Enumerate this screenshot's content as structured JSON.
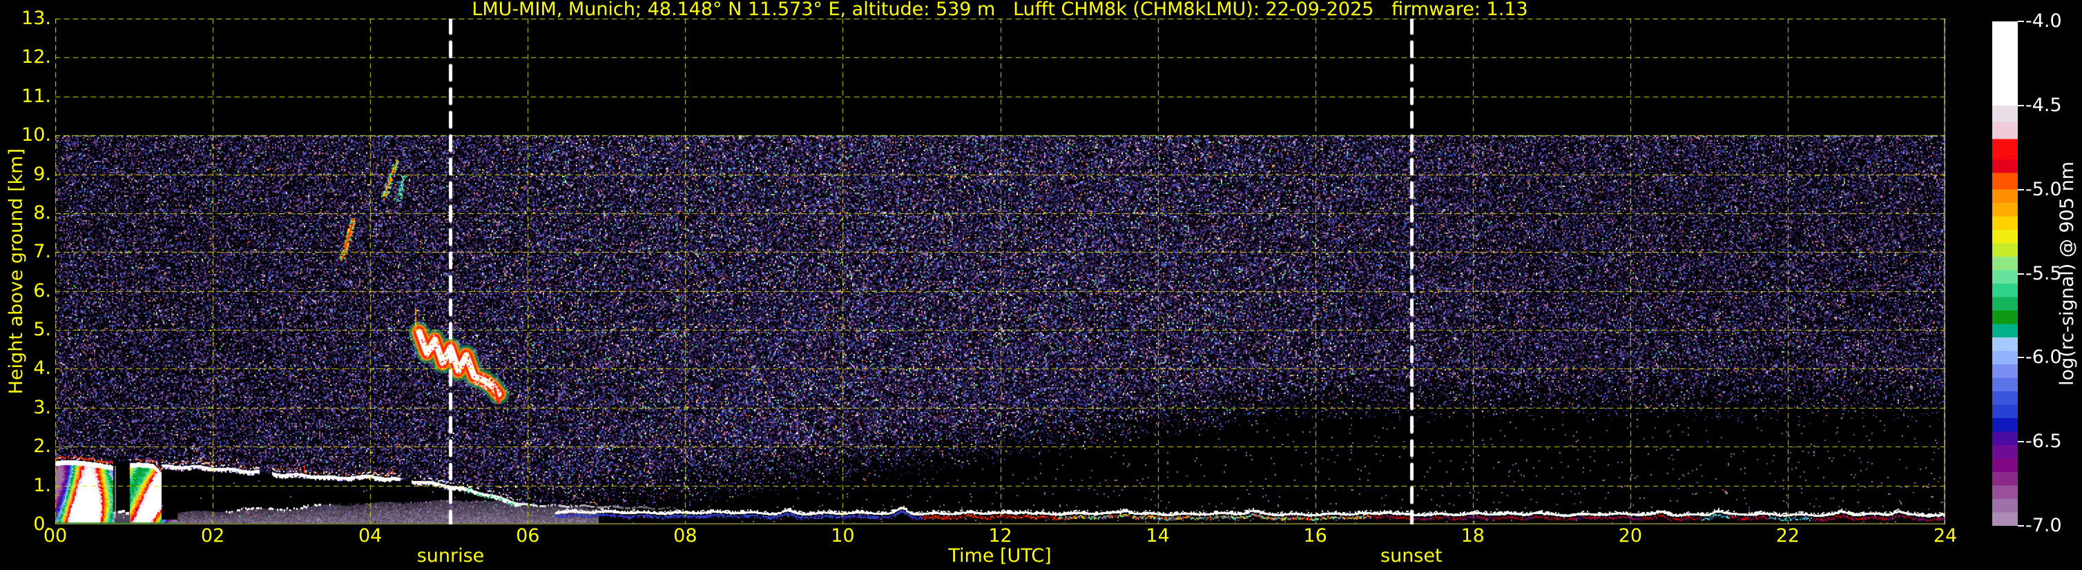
{
  "chart_data": {
    "type": "heatmap",
    "title": "LMU-MIM, Munich; 48.148° N 11.573° E, altitude: 539 m   Lufft CHM8k (CHM8kLMU): 22-09-2025   firmware: 1.13",
    "xlabel": "Time [UTC]",
    "ylabel": "Height above ground [km]",
    "xlim_hours": [
      0,
      24
    ],
    "ylim_km": [
      0,
      13
    ],
    "x_ticks": [
      {
        "hour": 0,
        "label": "00"
      },
      {
        "hour": 2,
        "label": "02"
      },
      {
        "hour": 4,
        "label": "04"
      },
      {
        "hour": 6,
        "label": "06"
      },
      {
        "hour": 8,
        "label": "08"
      },
      {
        "hour": 10,
        "label": "10"
      },
      {
        "hour": 12,
        "label": "12"
      },
      {
        "hour": 14,
        "label": "14"
      },
      {
        "hour": 16,
        "label": "16"
      },
      {
        "hour": 18,
        "label": "18"
      },
      {
        "hour": 20,
        "label": "20"
      },
      {
        "hour": 22,
        "label": "22"
      },
      {
        "hour": 24,
        "label": "24"
      }
    ],
    "y_ticks": [
      {
        "km": 0,
        "label": "0."
      },
      {
        "km": 1,
        "label": "1."
      },
      {
        "km": 2,
        "label": "2."
      },
      {
        "km": 3,
        "label": "3."
      },
      {
        "km": 4,
        "label": "4."
      },
      {
        "km": 5,
        "label": "5."
      },
      {
        "km": 6,
        "label": "6."
      },
      {
        "km": 7,
        "label": "7."
      },
      {
        "km": 8,
        "label": "8."
      },
      {
        "km": 9,
        "label": "9."
      },
      {
        "km": 10,
        "label": "10."
      },
      {
        "km": 11,
        "label": "11."
      },
      {
        "km": 12,
        "label": "12."
      },
      {
        "km": 13,
        "label": "13."
      }
    ],
    "grid": {
      "color": "#e3e300",
      "style": "dashed",
      "x_step_hours": 2,
      "y_step_km": 1
    },
    "data_region": {
      "top_km": 10,
      "note": "measurement range ends at 10 km; black above"
    },
    "events": [
      {
        "name": "sunrise",
        "label": "sunrise",
        "hour": 5.02,
        "line": "white-dashed-vertical"
      },
      {
        "name": "sunset",
        "label": "sunset",
        "hour": 17.22,
        "line": "white-dashed-vertical"
      }
    ],
    "colorbar": {
      "label": "log(rc-signal) @ 905 nm",
      "tick_labels": [
        "-4.0",
        "-4.5",
        "-5.0",
        "-5.5",
        "-6.0",
        "-6.5",
        "-7.0"
      ],
      "vmax": -4.0,
      "vmin": -7.0,
      "stops": [
        {
          "v": -4.0,
          "c": "#ffffff"
        },
        {
          "v": -4.5,
          "c": "#e9dde8"
        },
        {
          "v": -4.6,
          "c": "#f0cbd8"
        },
        {
          "v": -4.7,
          "c": "#fa0c0c"
        },
        {
          "v": -4.82,
          "c": "#e4001a"
        },
        {
          "v": -4.9,
          "c": "#ff5400"
        },
        {
          "v": -5.0,
          "c": "#ff9000"
        },
        {
          "v": -5.08,
          "c": "#ffaa00"
        },
        {
          "v": -5.16,
          "c": "#ffd200"
        },
        {
          "v": -5.24,
          "c": "#f2ee12"
        },
        {
          "v": -5.32,
          "c": "#c6ec2a"
        },
        {
          "v": -5.4,
          "c": "#8fe882"
        },
        {
          "v": -5.48,
          "c": "#66e49e"
        },
        {
          "v": -5.56,
          "c": "#2ed489"
        },
        {
          "v": -5.64,
          "c": "#14b45e"
        },
        {
          "v": -5.72,
          "c": "#0f9a14"
        },
        {
          "v": -5.8,
          "c": "#00b088"
        },
        {
          "v": -5.88,
          "c": "#a6ccff"
        },
        {
          "v": -5.96,
          "c": "#92b2fb"
        },
        {
          "v": -6.04,
          "c": "#7b8cf2"
        },
        {
          "v": -6.12,
          "c": "#5c74e9"
        },
        {
          "v": -6.2,
          "c": "#3b55dc"
        },
        {
          "v": -6.28,
          "c": "#2742d2"
        },
        {
          "v": -6.36,
          "c": "#0f17be"
        },
        {
          "v": -6.44,
          "c": "#4a0ba0"
        },
        {
          "v": -6.52,
          "c": "#6e0a94"
        },
        {
          "v": -6.6,
          "c": "#800884"
        },
        {
          "v": -6.68,
          "c": "#8c2a8a"
        },
        {
          "v": -6.76,
          "c": "#9a4f9a"
        },
        {
          "v": -6.84,
          "c": "#a070a8"
        },
        {
          "v": -6.92,
          "c": "#ab8cb4"
        },
        {
          "v": -7.0,
          "c": "#b7a6c2"
        }
      ]
    },
    "features": [
      {
        "id": "noise",
        "kind": "background_noise",
        "time_h": [
          0,
          24
        ],
        "height_km": [
          0,
          10
        ],
        "desc": "violet/blue solar-background speckle noise filling the 0-10 km range, black gap growing below ~2.6 km during afternoon/evening",
        "palette_dark": [
          "#271847",
          "#33205c",
          "#1c1340",
          "#3d2766",
          "#150f33",
          "#2c1c4e"
        ],
        "palette_mid": [
          "#5a3a86",
          "#6d4b96",
          "#4a4fae",
          "#46246e"
        ],
        "palette_blue": [
          "#3b55dc",
          "#2742d2",
          "#5577e8"
        ],
        "palette_mauve": [
          "#8a5a9a",
          "#a478b0"
        ],
        "palette_bright": [
          "#9fd2ff",
          "#57e87b",
          "#ff6a3c",
          "#ffd24a",
          "#ffffff",
          "#62e0d0",
          "#ff9efc"
        ],
        "top_edge_colors": [
          "#bfe8ff",
          "#ffffff",
          "#7fe8c0",
          "#d0b0ff"
        ]
      },
      {
        "id": "precip",
        "kind": "precipitation_shower",
        "time_h": [
          0.0,
          1.55
        ],
        "height_km": [
          0,
          1.75
        ],
        "cells": [
          [
            0.0,
            0.74
          ],
          [
            0.95,
            1.55
          ]
        ],
        "gap_h": [
          0.74,
          0.95
        ],
        "cloud_top_km": 1.6,
        "capA": [
          [
            0,
            1.62
          ],
          [
            0.3,
            1.58
          ],
          [
            0.55,
            1.6
          ],
          [
            0.74,
            1.55
          ]
        ],
        "capB": [
          [
            0.95,
            1.56
          ],
          [
            1.25,
            1.5
          ],
          [
            1.35,
            1.28
          ],
          [
            1.45,
            0.8
          ],
          [
            1.55,
            0.33
          ]
        ],
        "desc": "intense rainbow-striped rain/cloud signal below white cloud cap with red fringe"
      },
      {
        "id": "stratus",
        "kind": "cloud_top_line",
        "time_h": [
          1.35,
          5.9
        ],
        "path": [
          [
            1.35,
            1.52
          ],
          [
            1.8,
            1.5
          ],
          [
            2.3,
            1.42
          ],
          [
            2.6,
            1.38
          ],
          [
            2.8,
            1.32
          ],
          [
            3.2,
            1.28
          ],
          [
            3.6,
            1.22
          ],
          [
            4.0,
            1.26
          ],
          [
            4.35,
            1.18
          ],
          [
            4.6,
            1.12
          ],
          [
            4.9,
            1.05
          ],
          [
            5.15,
            0.95
          ],
          [
            5.5,
            0.78
          ],
          [
            5.9,
            0.55
          ]
        ],
        "gaps": [
          [
            2.58,
            2.74
          ],
          [
            4.38,
            4.52
          ]
        ],
        "desc": "white stratus cloud top ~1-1.5 km, fully attenuated (black) zone below"
      },
      {
        "id": "haze",
        "kind": "surface_haze",
        "time_h": [
          1.55,
          6.9
        ],
        "top_path": [
          [
            1.55,
            0.3
          ],
          [
            2.0,
            0.34
          ],
          [
            2.5,
            0.38
          ],
          [
            3.0,
            0.42
          ],
          [
            3.5,
            0.5
          ],
          [
            4.2,
            0.55
          ],
          [
            5.0,
            0.6
          ],
          [
            5.4,
            0.62
          ],
          [
            6.0,
            0.5
          ],
          [
            6.5,
            0.46
          ],
          [
            6.9,
            0.42
          ]
        ],
        "color": "#9a86ac",
        "white_speckle_top_time_h": [
          2.15,
          3.5
        ],
        "desc": "grey-violet near-surface aerosol wedge with bright speckled top"
      },
      {
        "id": "virga1",
        "kind": "fall_streak",
        "from": [
          3.78,
          7.85
        ],
        "to": [
          3.64,
          6.85
        ],
        "n": 170,
        "colors": [
          "#ff2800",
          "#ff7a00",
          "#ffd200",
          "#39d07a"
        ],
        "desc": "red/orange fall streak 6.8-7.9 km ~03:40 UTC"
      },
      {
        "id": "virga2",
        "kind": "fall_streak",
        "from": [
          4.33,
          9.35
        ],
        "to": [
          4.17,
          8.4
        ],
        "n": 120,
        "colors": [
          "#ff7a00",
          "#ffd200",
          "#39d07a",
          "#62e0d0"
        ],
        "desc": "orange/green fall streak 8.4-9.4 km ~04:15 UTC"
      },
      {
        "id": "virga3",
        "kind": "fall_streak",
        "from": [
          4.42,
          9.0
        ],
        "to": [
          4.36,
          8.3
        ],
        "n": 40,
        "colors": [
          "#62e0d0",
          "#39d07a"
        ],
        "desc": "faint cyan streak"
      },
      {
        "id": "midcloud",
        "kind": "midlevel_cloud_band",
        "time_h": [
          4.6,
          5.65
        ],
        "path": [
          [
            4.62,
            4.95
          ],
          [
            4.72,
            4.4
          ],
          [
            4.82,
            4.75
          ],
          [
            4.92,
            4.15
          ],
          [
            5.02,
            4.55
          ],
          [
            5.12,
            3.95
          ],
          [
            5.22,
            4.35
          ],
          [
            5.32,
            3.8
          ],
          [
            5.45,
            3.7
          ],
          [
            5.55,
            3.55
          ],
          [
            5.63,
            3.35
          ]
        ],
        "layers": [
          [
            "#39d07a",
            30,
            0.5
          ],
          [
            "#ff8c00",
            22,
            0.85
          ],
          [
            "#ff2800",
            16,
            1
          ],
          [
            "#ffffff",
            9,
            1
          ]
        ],
        "desc": "white/red zig-zag mid-level cloud band 3.3-5 km just after sunrise"
      },
      {
        "id": "residual",
        "kind": "aerosol_layer_line",
        "time_h": [
          6.35,
          24
        ],
        "base_path": [
          [
            6.35,
            0.3
          ],
          [
            8,
            0.29
          ],
          [
            10,
            0.27
          ],
          [
            12,
            0.27
          ],
          [
            14,
            0.26
          ],
          [
            16,
            0.25
          ],
          [
            18,
            0.25
          ],
          [
            20,
            0.24
          ],
          [
            22,
            0.24
          ],
          [
            24,
            0.23
          ]
        ],
        "bumps": [
          [
            9.3,
            0.07
          ],
          [
            10.75,
            0.14
          ],
          [
            12.3,
            0.05
          ],
          [
            13.6,
            0.07
          ],
          [
            15.2,
            0.06
          ],
          [
            16.9,
            0.05
          ],
          [
            18.8,
            0.06
          ],
          [
            20.4,
            0.07
          ],
          [
            21.1,
            0.09
          ],
          [
            22.7,
            0.07
          ],
          [
            23.4,
            0.08
          ]
        ],
        "upper_line": {
          "time_h": [
            5.9,
            7.9
          ],
          "from_km": 0.52,
          "to_km": 0.42
        },
        "fringe": "blue below line 06-11 UTC, red 11-12.7, rainbow dots 12.7-16.7, dark red after",
        "desc": "thin bright white near-surface aerosol layer ~0.25 km persisting all day"
      },
      {
        "id": "groundline",
        "kind": "surface_overlap_line",
        "height_km": 0.035,
        "color": "#70701e"
      }
    ]
  },
  "colors": {
    "background": "#000000",
    "axis_text": "#ffff00",
    "colorbar_text": "#ffffff",
    "grid": "#e3e300",
    "event_line": "#ffffff",
    "frame_right": "#c8c8c8"
  }
}
